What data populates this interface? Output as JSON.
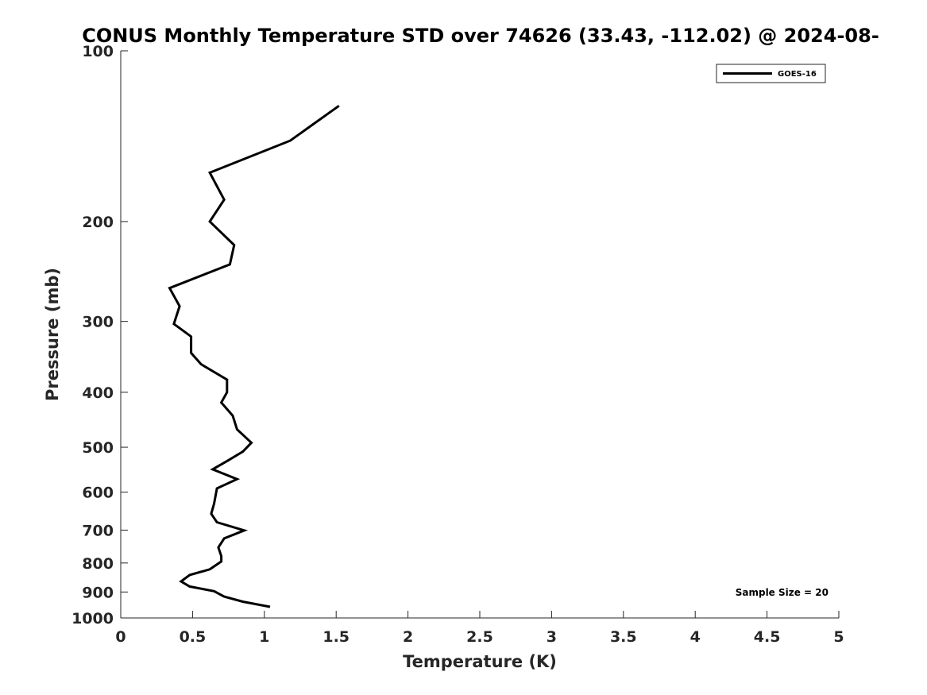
{
  "chart_data": {
    "type": "line",
    "title": "CONUS Monthly Temperature STD over 74626 (33.43, -112.02) @ 2024-08-",
    "xlabel": "Temperature (K)",
    "ylabel": "Pressure (mb)",
    "xlim": [
      0,
      5
    ],
    "ylim": [
      100,
      1000
    ],
    "y_scale": "log",
    "y_reversed": true,
    "grid": false,
    "legend_position": "top-right",
    "x_ticks": [
      0,
      0.5,
      1,
      1.5,
      2,
      2.5,
      3,
      3.5,
      4,
      4.5,
      5
    ],
    "x_tick_labels": [
      "0",
      "0.5",
      "1",
      "1.5",
      "2",
      "2.5",
      "3",
      "3.5",
      "4",
      "4.5",
      "5"
    ],
    "y_ticks": [
      100,
      200,
      300,
      400,
      500,
      600,
      700,
      800,
      900,
      1000
    ],
    "y_tick_labels": [
      "100",
      "200",
      "300",
      "400",
      "500",
      "600",
      "700",
      "800",
      "900",
      "1000"
    ],
    "annotation": "Sample Size = 20",
    "series": [
      {
        "name": "GOES-16",
        "color": "#000000",
        "points": [
          {
            "x": 1.52,
            "p": 125
          },
          {
            "x": 1.18,
            "p": 144
          },
          {
            "x": 0.62,
            "p": 164
          },
          {
            "x": 0.72,
            "p": 183
          },
          {
            "x": 0.62,
            "p": 200
          },
          {
            "x": 0.79,
            "p": 220
          },
          {
            "x": 0.76,
            "p": 238
          },
          {
            "x": 0.34,
            "p": 262
          },
          {
            "x": 0.41,
            "p": 282
          },
          {
            "x": 0.37,
            "p": 303
          },
          {
            "x": 0.49,
            "p": 319
          },
          {
            "x": 0.49,
            "p": 341
          },
          {
            "x": 0.56,
            "p": 357
          },
          {
            "x": 0.74,
            "p": 380
          },
          {
            "x": 0.74,
            "p": 400
          },
          {
            "x": 0.7,
            "p": 417
          },
          {
            "x": 0.78,
            "p": 440
          },
          {
            "x": 0.81,
            "p": 465
          },
          {
            "x": 0.91,
            "p": 491
          },
          {
            "x": 0.85,
            "p": 509
          },
          {
            "x": 0.75,
            "p": 527
          },
          {
            "x": 0.64,
            "p": 547
          },
          {
            "x": 0.81,
            "p": 569
          },
          {
            "x": 0.67,
            "p": 591
          },
          {
            "x": 0.65,
            "p": 629
          },
          {
            "x": 0.63,
            "p": 655
          },
          {
            "x": 0.67,
            "p": 678
          },
          {
            "x": 0.86,
            "p": 701
          },
          {
            "x": 0.72,
            "p": 724
          },
          {
            "x": 0.68,
            "p": 751
          },
          {
            "x": 0.7,
            "p": 778
          },
          {
            "x": 0.7,
            "p": 795
          },
          {
            "x": 0.62,
            "p": 821
          },
          {
            "x": 0.48,
            "p": 840
          },
          {
            "x": 0.42,
            "p": 862
          },
          {
            "x": 0.48,
            "p": 880
          },
          {
            "x": 0.65,
            "p": 897
          },
          {
            "x": 0.72,
            "p": 917
          },
          {
            "x": 0.85,
            "p": 936
          },
          {
            "x": 1.04,
            "p": 956
          }
        ]
      }
    ]
  }
}
